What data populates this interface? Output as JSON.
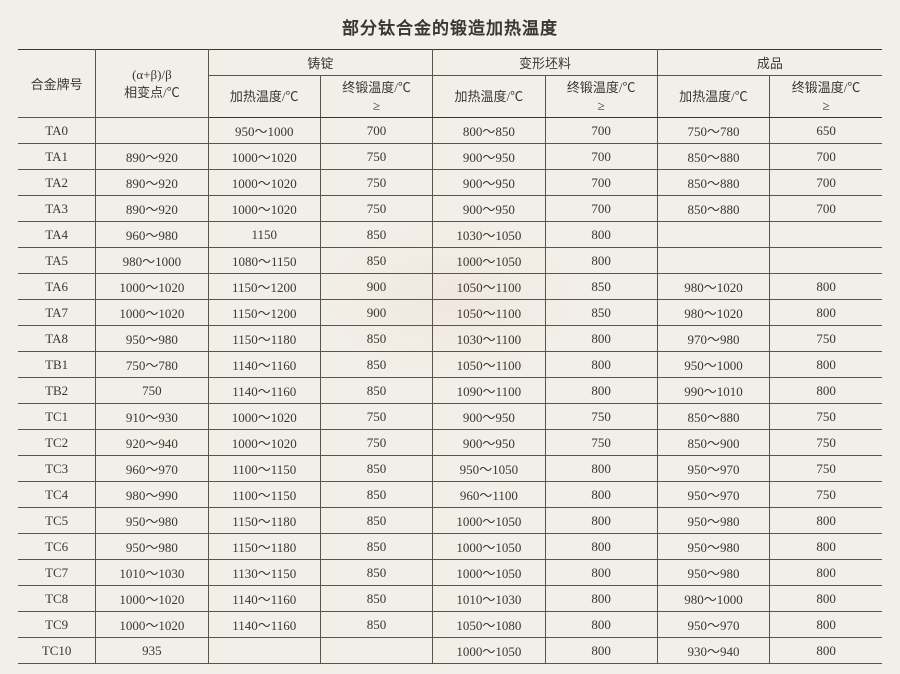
{
  "title": "部分钛合金的锻造加热温度",
  "headers": {
    "grade": "合金牌号",
    "transition": "(α+β)/β\n相变点/℃",
    "group_ingot": "铸锭",
    "group_billet": "变形坯料",
    "group_product": "成品",
    "heat": "加热温度/℃",
    "final": "终锻温度/℃\n≥"
  },
  "columns_layout": {
    "grade_width_pct": 9,
    "transition_width_pct": 13,
    "data_col_width_pct": 13
  },
  "colors": {
    "background": "#f2efe8",
    "text": "#3a3630",
    "rule": "#5a564e",
    "heavy_rule": "#3a3630"
  },
  "typography": {
    "title_fontsize_pt": 13,
    "body_fontsize_pt": 10,
    "font_family": "SimSun, serif"
  },
  "rows": [
    {
      "grade": "TA0",
      "trans": "",
      "ih": "950～1000",
      "if": "700",
      "bh": "800～850",
      "bf": "700",
      "ph": "750～780",
      "pf": "650"
    },
    {
      "grade": "TA1",
      "trans": "890～920",
      "ih": "1000～1020",
      "if": "750",
      "bh": "900～950",
      "bf": "700",
      "ph": "850～880",
      "pf": "700"
    },
    {
      "grade": "TA2",
      "trans": "890～920",
      "ih": "1000～1020",
      "if": "750",
      "bh": "900～950",
      "bf": "700",
      "ph": "850～880",
      "pf": "700"
    },
    {
      "grade": "TA3",
      "trans": "890～920",
      "ih": "1000～1020",
      "if": "750",
      "bh": "900～950",
      "bf": "700",
      "ph": "850～880",
      "pf": "700"
    },
    {
      "grade": "TA4",
      "trans": "960～980",
      "ih": "1150",
      "if": "850",
      "bh": "1030～1050",
      "bf": "800",
      "ph": "",
      "pf": ""
    },
    {
      "grade": "TA5",
      "trans": "980～1000",
      "ih": "1080～1150",
      "if": "850",
      "bh": "1000～1050",
      "bf": "800",
      "ph": "",
      "pf": ""
    },
    {
      "grade": "TA6",
      "trans": "1000～1020",
      "ih": "1150～1200",
      "if": "900",
      "bh": "1050～1100",
      "bf": "850",
      "ph": "980～1020",
      "pf": "800"
    },
    {
      "grade": "TA7",
      "trans": "1000～1020",
      "ih": "1150～1200",
      "if": "900",
      "bh": "1050～1100",
      "bf": "850",
      "ph": "980～1020",
      "pf": "800"
    },
    {
      "grade": "TA8",
      "trans": "950～980",
      "ih": "1150～1180",
      "if": "850",
      "bh": "1030～1100",
      "bf": "800",
      "ph": "970～980",
      "pf": "750"
    },
    {
      "grade": "TB1",
      "trans": "750～780",
      "ih": "1140～1160",
      "if": "850",
      "bh": "1050～1100",
      "bf": "800",
      "ph": "950～1000",
      "pf": "800"
    },
    {
      "grade": "TB2",
      "trans": "750",
      "ih": "1140～1160",
      "if": "850",
      "bh": "1090～1100",
      "bf": "800",
      "ph": "990～1010",
      "pf": "800"
    },
    {
      "grade": "TC1",
      "trans": "910～930",
      "ih": "1000～1020",
      "if": "750",
      "bh": "900～950",
      "bf": "750",
      "ph": "850～880",
      "pf": "750"
    },
    {
      "grade": "TC2",
      "trans": "920～940",
      "ih": "1000～1020",
      "if": "750",
      "bh": "900～950",
      "bf": "750",
      "ph": "850～900",
      "pf": "750"
    },
    {
      "grade": "TC3",
      "trans": "960～970",
      "ih": "1100～1150",
      "if": "850",
      "bh": "950～1050",
      "bf": "800",
      "ph": "950～970",
      "pf": "750"
    },
    {
      "grade": "TC4",
      "trans": "980～990",
      "ih": "1100～1150",
      "if": "850",
      "bh": "960～1100",
      "bf": "800",
      "ph": "950～970",
      "pf": "750"
    },
    {
      "grade": "TC5",
      "trans": "950～980",
      "ih": "1150～1180",
      "if": "850",
      "bh": "1000～1050",
      "bf": "800",
      "ph": "950～980",
      "pf": "800"
    },
    {
      "grade": "TC6",
      "trans": "950～980",
      "ih": "1150～1180",
      "if": "850",
      "bh": "1000～1050",
      "bf": "800",
      "ph": "950～980",
      "pf": "800"
    },
    {
      "grade": "TC7",
      "trans": "1010～1030",
      "ih": "1130～1150",
      "if": "850",
      "bh": "1000～1050",
      "bf": "800",
      "ph": "950～980",
      "pf": "800"
    },
    {
      "grade": "TC8",
      "trans": "1000～1020",
      "ih": "1140～1160",
      "if": "850",
      "bh": "1010～1030",
      "bf": "800",
      "ph": "980～1000",
      "pf": "800"
    },
    {
      "grade": "TC9",
      "trans": "1000～1020",
      "ih": "1140～1160",
      "if": "850",
      "bh": "1050～1080",
      "bf": "800",
      "ph": "950～970",
      "pf": "800"
    },
    {
      "grade": "TC10",
      "trans": "935",
      "ih": "",
      "if": "",
      "bh": "1000～1050",
      "bf": "800",
      "ph": "930～940",
      "pf": "800"
    }
  ]
}
